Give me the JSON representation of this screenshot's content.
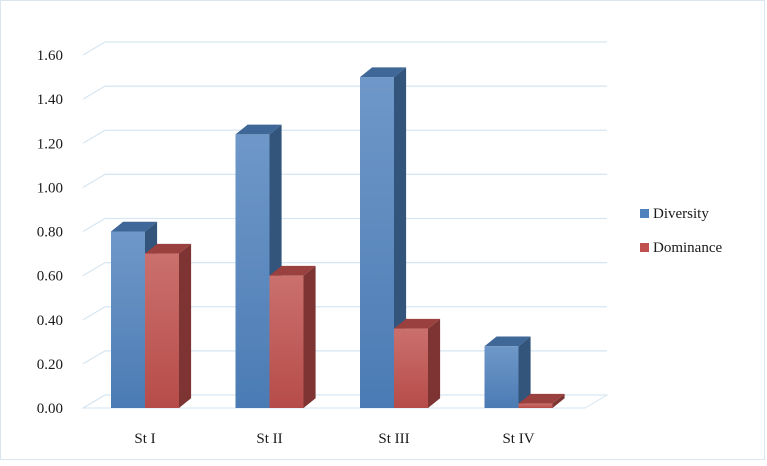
{
  "chart_data": {
    "type": "bar",
    "style": "3d-clustered-column",
    "categories": [
      "St I",
      "St II",
      "St III",
      "St IV"
    ],
    "series": [
      {
        "name": "Diversity",
        "color": "#4f81bd",
        "values": [
          0.8,
          1.24,
          1.5,
          0.28
        ]
      },
      {
        "name": "Dominance",
        "color": "#c0504d",
        "values": [
          0.7,
          0.6,
          0.36,
          0.02
        ]
      }
    ],
    "ylim": [
      0,
      1.6
    ],
    "yticks": [
      "0.00",
      "0.20",
      "0.40",
      "0.60",
      "0.80",
      "1.00",
      "1.20",
      "1.40",
      "1.60"
    ],
    "grid": true,
    "legend_position": "right"
  }
}
